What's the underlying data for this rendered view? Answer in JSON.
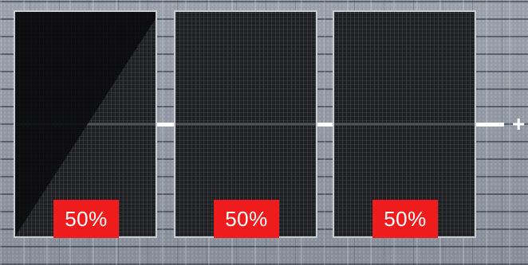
{
  "scene": {
    "description_colors": {
      "roof": "#8f949e",
      "panel": "#1e1f22",
      "panel_frame": "#c9ccd1",
      "shading": "#000000",
      "badge": "#ee1c1c",
      "badge_text": "#ffffff",
      "wire": "#ffffff"
    }
  },
  "panels": [
    {
      "label": "50%",
      "shaded": true
    },
    {
      "label": "50%",
      "shaded": false
    },
    {
      "label": "50%",
      "shaded": false
    }
  ],
  "connector": {
    "symbol": "+"
  }
}
